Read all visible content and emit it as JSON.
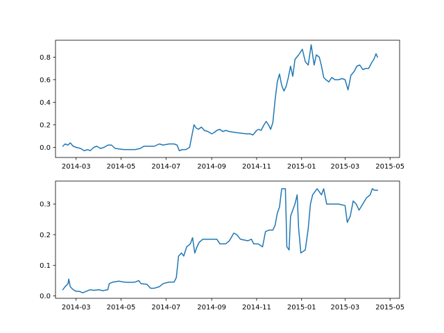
{
  "chart_data": [
    {
      "type": "line",
      "title": "",
      "xlabel": "",
      "ylabel": "",
      "grid": false,
      "x_range": [
        "2014-02-01",
        "2015-05-14"
      ],
      "ylim": [
        -0.09,
        0.95
      ],
      "x_ticks": [
        "2014-03",
        "2014-05",
        "2014-07",
        "2014-09",
        "2014-11",
        "2015-01",
        "2015-03",
        "2015-05"
      ],
      "y_ticks": [
        "0.0",
        "0.2",
        "0.4",
        "0.6",
        "0.8"
      ],
      "series": [
        {
          "color": "#1f77b4",
          "points": [
            [
              "2014-02-11",
              0.01
            ],
            [
              "2014-02-14",
              0.03
            ],
            [
              "2014-02-18",
              0.02
            ],
            [
              "2014-02-21",
              0.04
            ],
            [
              "2014-02-25",
              0.01
            ],
            [
              "2014-03-01",
              0.0
            ],
            [
              "2014-03-07",
              -0.01
            ],
            [
              "2014-03-12",
              -0.03
            ],
            [
              "2014-03-17",
              -0.02
            ],
            [
              "2014-03-20",
              -0.03
            ],
            [
              "2014-03-25",
              0.0
            ],
            [
              "2014-03-29",
              0.01
            ],
            [
              "2014-04-03",
              -0.01
            ],
            [
              "2014-04-08",
              0.0
            ],
            [
              "2014-04-13",
              0.02
            ],
            [
              "2014-04-18",
              0.02
            ],
            [
              "2014-04-23",
              -0.01
            ],
            [
              "2014-05-05",
              -0.02
            ],
            [
              "2014-05-20",
              -0.02
            ],
            [
              "2014-05-27",
              -0.01
            ],
            [
              "2014-06-01",
              0.01
            ],
            [
              "2014-06-15",
              0.01
            ],
            [
              "2014-06-22",
              0.03
            ],
            [
              "2014-06-27",
              0.02
            ],
            [
              "2014-07-05",
              0.03
            ],
            [
              "2014-07-12",
              0.03
            ],
            [
              "2014-07-16",
              0.02
            ],
            [
              "2014-07-19",
              -0.03
            ],
            [
              "2014-07-23",
              -0.02
            ],
            [
              "2014-07-28",
              -0.02
            ],
            [
              "2014-08-02",
              0.0
            ],
            [
              "2014-08-05",
              0.1
            ],
            [
              "2014-08-08",
              0.2
            ],
            [
              "2014-08-11",
              0.17
            ],
            [
              "2014-08-14",
              0.16
            ],
            [
              "2014-08-18",
              0.18
            ],
            [
              "2014-08-22",
              0.15
            ],
            [
              "2014-08-27",
              0.14
            ],
            [
              "2014-09-01",
              0.12
            ],
            [
              "2014-09-04",
              0.13
            ],
            [
              "2014-09-08",
              0.15
            ],
            [
              "2014-09-12",
              0.16
            ],
            [
              "2014-09-16",
              0.14
            ],
            [
              "2014-09-20",
              0.15
            ],
            [
              "2014-09-25",
              0.14
            ],
            [
              "2014-10-05",
              0.13
            ],
            [
              "2014-10-18",
              0.12
            ],
            [
              "2014-10-23",
              0.12
            ],
            [
              "2014-10-27",
              0.11
            ],
            [
              "2014-11-01",
              0.15
            ],
            [
              "2014-11-04",
              0.16
            ],
            [
              "2014-11-07",
              0.15
            ],
            [
              "2014-11-11",
              0.2
            ],
            [
              "2014-11-14",
              0.23
            ],
            [
              "2014-11-17",
              0.2
            ],
            [
              "2014-11-20",
              0.16
            ],
            [
              "2014-11-23",
              0.22
            ],
            [
              "2014-11-26",
              0.42
            ],
            [
              "2014-11-29",
              0.58
            ],
            [
              "2014-12-02",
              0.65
            ],
            [
              "2014-12-05",
              0.55
            ],
            [
              "2014-12-08",
              0.5
            ],
            [
              "2014-12-11",
              0.54
            ],
            [
              "2014-12-14",
              0.62
            ],
            [
              "2014-12-17",
              0.72
            ],
            [
              "2014-12-20",
              0.63
            ],
            [
              "2014-12-23",
              0.78
            ],
            [
              "2014-12-28",
              0.82
            ],
            [
              "2015-01-02",
              0.87
            ],
            [
              "2015-01-06",
              0.76
            ],
            [
              "2015-01-10",
              0.73
            ],
            [
              "2015-01-14",
              0.91
            ],
            [
              "2015-01-18",
              0.73
            ],
            [
              "2015-01-21",
              0.82
            ],
            [
              "2015-01-25",
              0.8
            ],
            [
              "2015-01-28",
              0.72
            ],
            [
              "2015-01-31",
              0.62
            ],
            [
              "2015-02-03",
              0.6
            ],
            [
              "2015-02-07",
              0.58
            ],
            [
              "2015-02-11",
              0.62
            ],
            [
              "2015-02-15",
              0.6
            ],
            [
              "2015-02-20",
              0.6
            ],
            [
              "2015-02-25",
              0.61
            ],
            [
              "2015-03-01",
              0.6
            ],
            [
              "2015-03-05",
              0.51
            ],
            [
              "2015-03-09",
              0.64
            ],
            [
              "2015-03-13",
              0.67
            ],
            [
              "2015-03-17",
              0.72
            ],
            [
              "2015-03-21",
              0.73
            ],
            [
              "2015-03-25",
              0.69
            ],
            [
              "2015-03-29",
              0.7
            ],
            [
              "2015-04-02",
              0.7
            ],
            [
              "2015-04-06",
              0.75
            ],
            [
              "2015-04-09",
              0.78
            ],
            [
              "2015-04-12",
              0.83
            ],
            [
              "2015-04-14",
              0.8
            ]
          ]
        }
      ]
    },
    {
      "type": "line",
      "title": "",
      "xlabel": "",
      "ylabel": "",
      "grid": false,
      "x_range": [
        "2014-02-01",
        "2015-05-14"
      ],
      "ylim": [
        -0.008,
        0.375
      ],
      "x_ticks": [
        "2014-03",
        "2014-05",
        "2014-07",
        "2014-09",
        "2014-11",
        "2015-01",
        "2015-03",
        "2015-05"
      ],
      "y_ticks": [
        "0.0",
        "0.1",
        "0.2",
        "0.3"
      ],
      "series": [
        {
          "color": "#1f77b4",
          "points": [
            [
              "2014-02-11",
              0.02
            ],
            [
              "2014-02-14",
              0.03
            ],
            [
              "2014-02-18",
              0.04
            ],
            [
              "2014-02-19",
              0.055
            ],
            [
              "2014-02-21",
              0.03
            ],
            [
              "2014-02-25",
              0.02
            ],
            [
              "2014-03-01",
              0.015
            ],
            [
              "2014-03-05",
              0.015
            ],
            [
              "2014-03-10",
              0.01
            ],
            [
              "2014-03-15",
              0.015
            ],
            [
              "2014-03-20",
              0.02
            ],
            [
              "2014-03-25",
              0.018
            ],
            [
              "2014-04-01",
              0.02
            ],
            [
              "2014-04-06",
              0.017
            ],
            [
              "2014-04-13",
              0.02
            ],
            [
              "2014-04-15",
              0.04
            ],
            [
              "2014-04-20",
              0.045
            ],
            [
              "2014-04-28",
              0.048
            ],
            [
              "2014-05-05",
              0.045
            ],
            [
              "2014-05-12",
              0.044
            ],
            [
              "2014-05-20",
              0.045
            ],
            [
              "2014-05-25",
              0.05
            ],
            [
              "2014-05-28",
              0.04
            ],
            [
              "2014-06-05",
              0.038
            ],
            [
              "2014-06-10",
              0.025
            ],
            [
              "2014-06-15",
              0.025
            ],
            [
              "2014-06-22",
              0.03
            ],
            [
              "2014-06-27",
              0.04
            ],
            [
              "2014-07-05",
              0.045
            ],
            [
              "2014-07-12",
              0.045
            ],
            [
              "2014-07-15",
              0.06
            ],
            [
              "2014-07-18",
              0.13
            ],
            [
              "2014-07-22",
              0.14
            ],
            [
              "2014-07-25",
              0.13
            ],
            [
              "2014-07-29",
              0.16
            ],
            [
              "2014-08-03",
              0.17
            ],
            [
              "2014-08-06",
              0.19
            ],
            [
              "2014-08-09",
              0.14
            ],
            [
              "2014-08-12",
              0.16
            ],
            [
              "2014-08-15",
              0.175
            ],
            [
              "2014-08-20",
              0.185
            ],
            [
              "2014-08-30",
              0.185
            ],
            [
              "2014-09-08",
              0.185
            ],
            [
              "2014-09-12",
              0.17
            ],
            [
              "2014-09-20",
              0.17
            ],
            [
              "2014-09-25",
              0.18
            ],
            [
              "2014-10-01",
              0.205
            ],
            [
              "2014-10-05",
              0.2
            ],
            [
              "2014-10-10",
              0.185
            ],
            [
              "2014-10-20",
              0.18
            ],
            [
              "2014-10-25",
              0.185
            ],
            [
              "2014-10-28",
              0.17
            ],
            [
              "2014-11-03",
              0.17
            ],
            [
              "2014-11-06",
              0.165
            ],
            [
              "2014-11-09",
              0.16
            ],
            [
              "2014-11-13",
              0.21
            ],
            [
              "2014-11-18",
              0.215
            ],
            [
              "2014-11-23",
              0.215
            ],
            [
              "2014-11-26",
              0.23
            ],
            [
              "2014-11-29",
              0.27
            ],
            [
              "2014-12-02",
              0.29
            ],
            [
              "2014-12-05",
              0.35
            ],
            [
              "2014-12-10",
              0.35
            ],
            [
              "2014-12-12",
              0.16
            ],
            [
              "2014-12-15",
              0.15
            ],
            [
              "2014-12-17",
              0.26
            ],
            [
              "2014-12-20",
              0.28
            ],
            [
              "2014-12-23",
              0.3
            ],
            [
              "2014-12-26",
              0.33
            ],
            [
              "2014-12-28",
              0.22
            ],
            [
              "2014-12-31",
              0.14
            ],
            [
              "2015-01-06",
              0.15
            ],
            [
              "2015-01-10",
              0.22
            ],
            [
              "2015-01-13",
              0.3
            ],
            [
              "2015-01-16",
              0.33
            ],
            [
              "2015-01-19",
              0.34
            ],
            [
              "2015-01-22",
              0.35
            ],
            [
              "2015-01-25",
              0.34
            ],
            [
              "2015-01-28",
              0.33
            ],
            [
              "2015-01-31",
              0.35
            ],
            [
              "2015-02-04",
              0.3
            ],
            [
              "2015-02-10",
              0.3
            ],
            [
              "2015-02-20",
              0.3
            ],
            [
              "2015-03-01",
              0.295
            ],
            [
              "2015-03-04",
              0.24
            ],
            [
              "2015-03-08",
              0.26
            ],
            [
              "2015-03-12",
              0.31
            ],
            [
              "2015-03-16",
              0.3
            ],
            [
              "2015-03-20",
              0.28
            ],
            [
              "2015-03-25",
              0.3
            ],
            [
              "2015-03-30",
              0.32
            ],
            [
              "2015-04-04",
              0.33
            ],
            [
              "2015-04-07",
              0.35
            ],
            [
              "2015-04-10",
              0.345
            ],
            [
              "2015-04-14",
              0.345
            ]
          ]
        }
      ]
    }
  ]
}
